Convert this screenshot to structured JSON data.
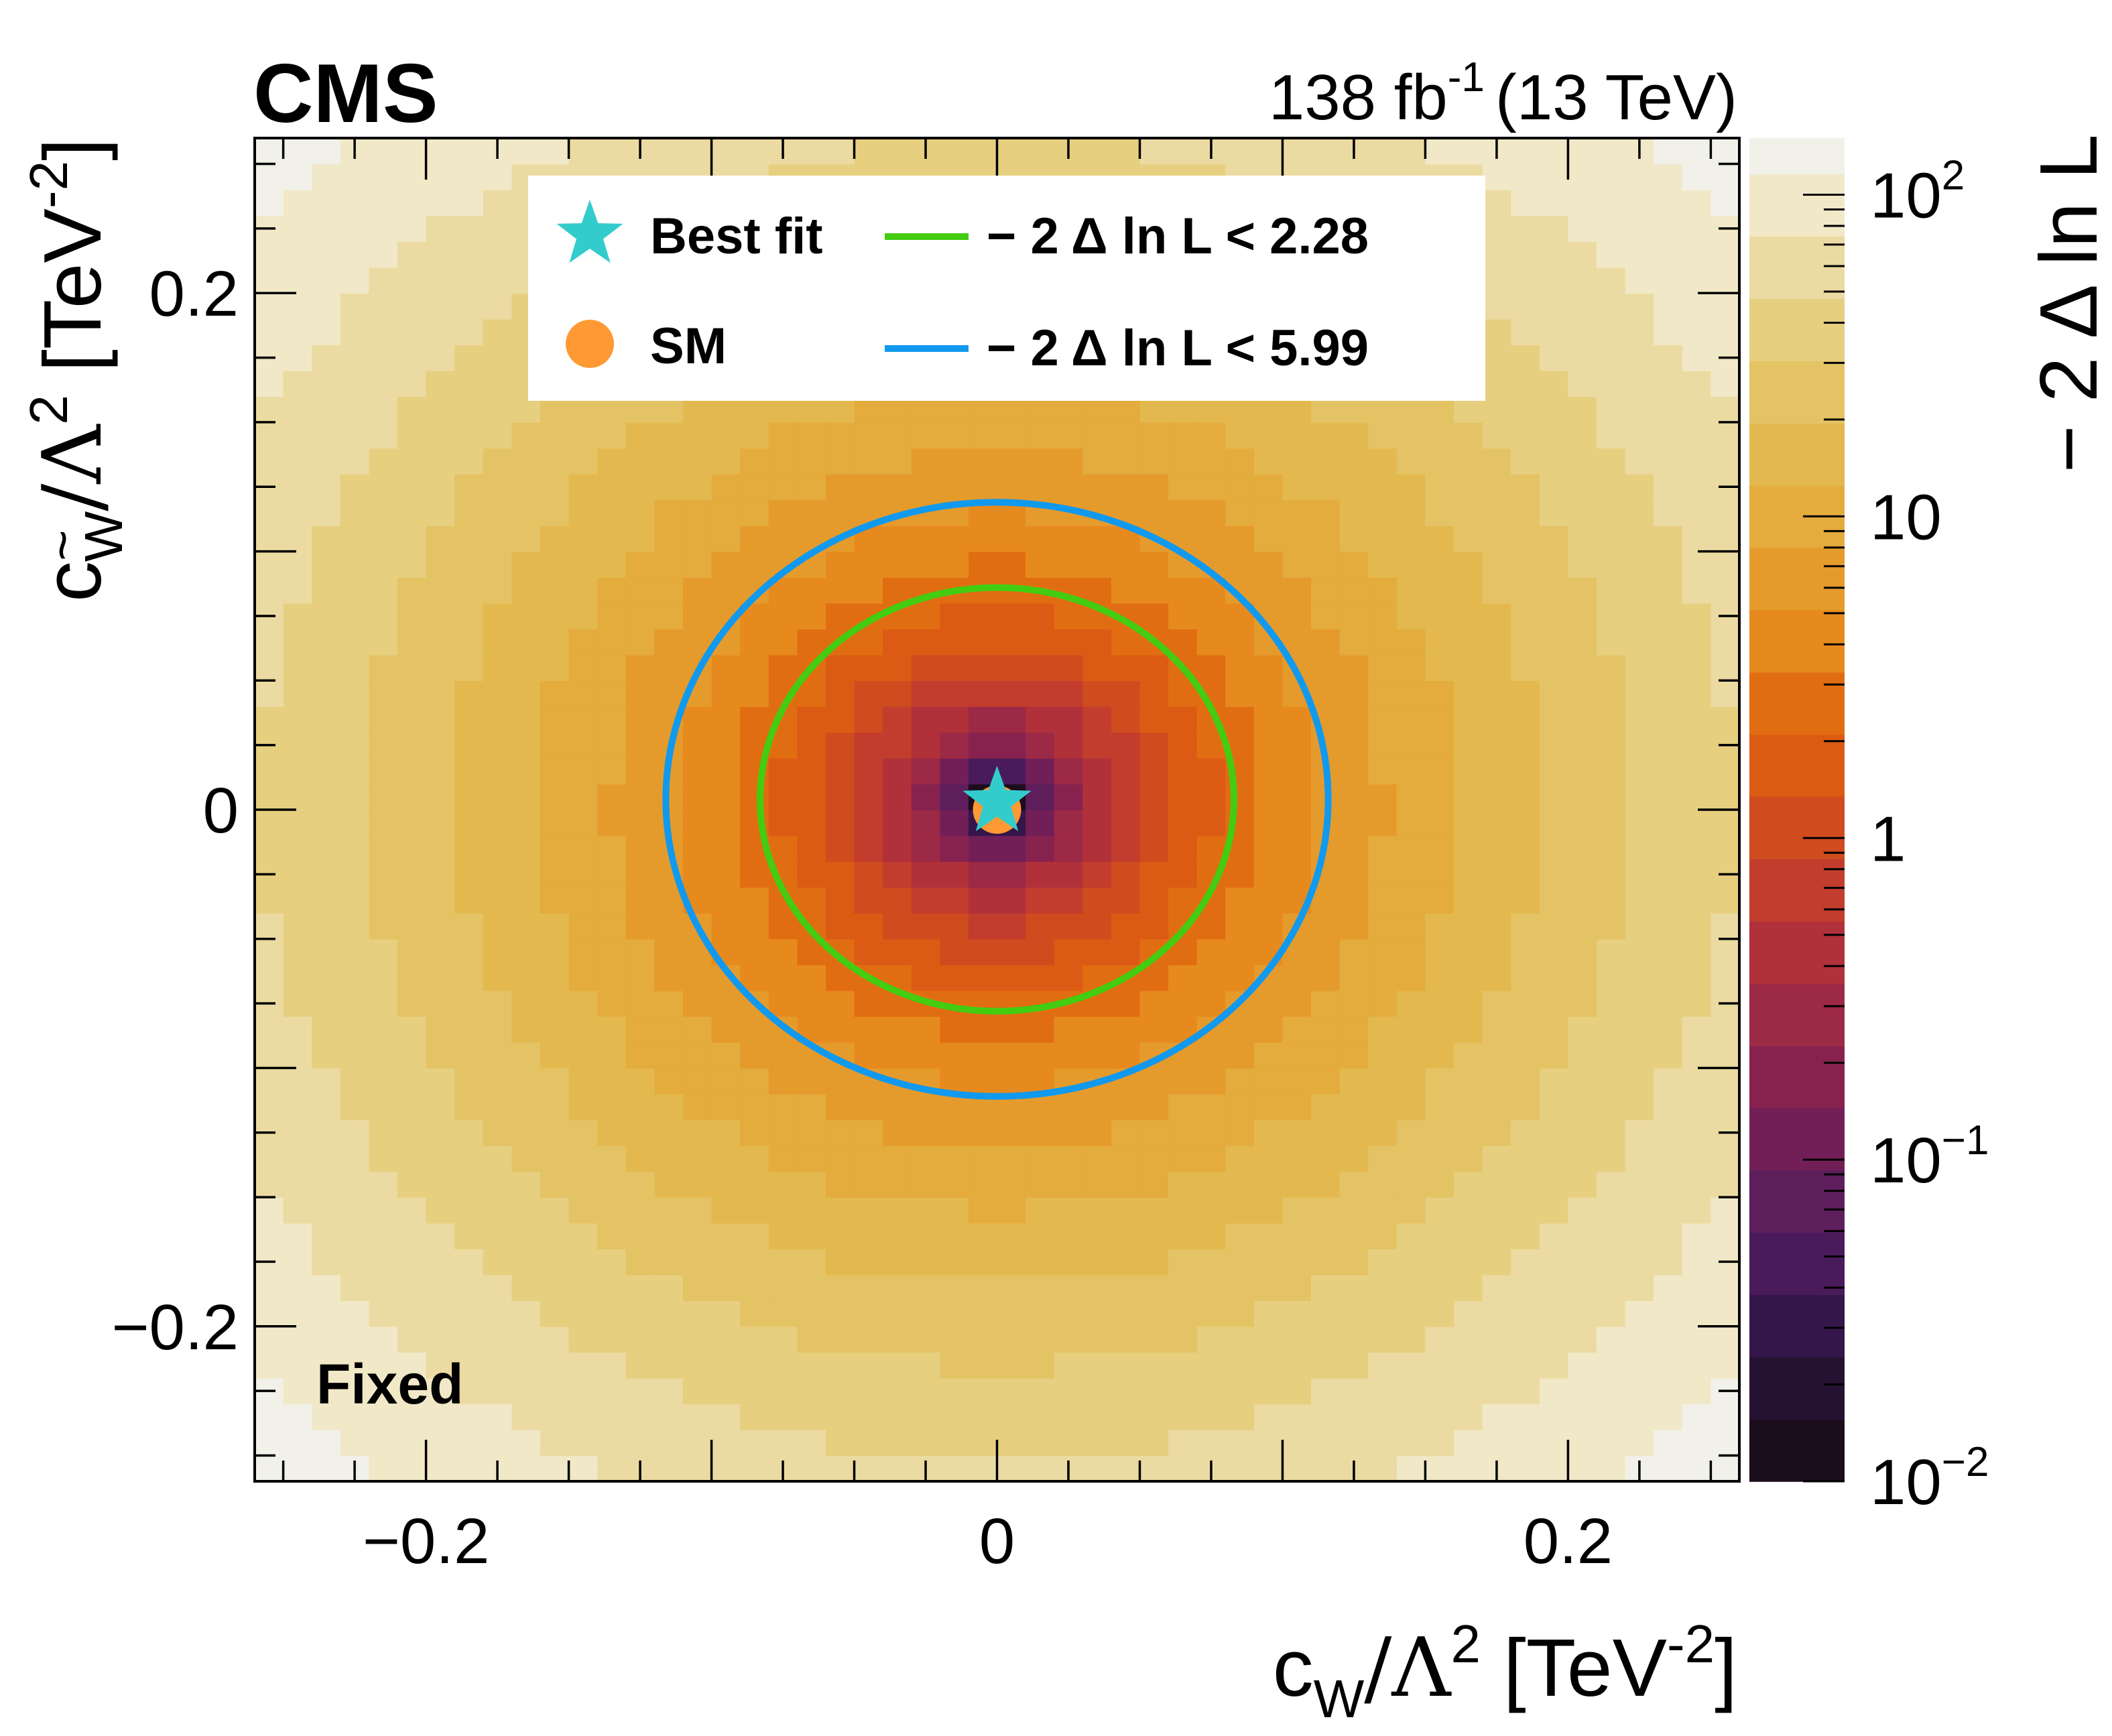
{
  "header": {
    "experiment": "CMS",
    "lumi_value": "138 fb",
    "lumi_exp": "-1",
    "energy": "(13 TeV)"
  },
  "labels": {
    "category": "Fixed"
  },
  "chart_data": {
    "type": "heatmap",
    "title": "",
    "xlabel": {
      "base": "c",
      "sub": "W",
      "rest": "/Λ",
      "pow": "2",
      "unit": " [TeV",
      "unit_pow": "-2",
      "close": "]"
    },
    "ylabel": {
      "base": "c",
      "sub": "W",
      "sub_accent": "~",
      "rest": "/Λ",
      "pow": "2",
      "unit": " [TeV",
      "unit_pow": "-2",
      "close": "]"
    },
    "zlabel": "− 2  Δ ln L",
    "xlim": [
      -0.26,
      0.26
    ],
    "ylim": [
      -0.26,
      0.26
    ],
    "zlim": [
      0.01,
      150
    ],
    "zscale": "log",
    "x_ticks": [
      {
        "value": -0.2,
        "label": "−0.2"
      },
      {
        "value": 0,
        "label": "0"
      },
      {
        "value": 0.2,
        "label": "0.2"
      }
    ],
    "y_ticks": [
      {
        "value": 0.2,
        "label": "0.2"
      },
      {
        "value": 0,
        "label": "0"
      },
      {
        "value": -0.2,
        "label": "−0.2"
      }
    ],
    "z_ticks": [
      {
        "value": 100,
        "base": "10",
        "exp": "2"
      },
      {
        "value": 10,
        "base": "10",
        "exp": ""
      },
      {
        "value": 1,
        "base": "1",
        "exp": ""
      },
      {
        "value": 0.1,
        "base": "10",
        "exp": "−1"
      },
      {
        "value": 0.01,
        "base": "10",
        "exp": "−2"
      }
    ],
    "best_fit": {
      "x": 0.0,
      "y": 0.003
    },
    "sm": {
      "x": 0.0,
      "y": 0.0
    },
    "contours": [
      {
        "name": "68",
        "level": 2.28,
        "color": "#44cc11",
        "cx": 0.0,
        "cy": 0.004,
        "rx": 0.083,
        "ry": 0.082
      },
      {
        "name": "95",
        "level": 5.99,
        "color": "#1199ee",
        "cx": 0.0,
        "cy": 0.004,
        "rx": 0.116,
        "ry": 0.115
      }
    ],
    "legend": {
      "placement": "top-center",
      "entries": [
        {
          "name": "best_fit",
          "label": "Best fit",
          "marker": "star",
          "color": "#33cccc"
        },
        {
          "name": "contour_68",
          "label": "− 2  Δ ln L < 2.28",
          "marker": "line",
          "color": "#44cc11"
        },
        {
          "name": "sm",
          "label": "SM",
          "marker": "circle",
          "color": "#ff9933"
        },
        {
          "name": "contour_95",
          "label": "− 2  Δ ln L < 5.99",
          "marker": "line",
          "color": "#1199ee"
        }
      ]
    },
    "palette": [
      "#1c0d1d",
      "#251233",
      "#35164a",
      "#4a1b5a",
      "#5e1e5c",
      "#721f58",
      "#87224f",
      "#9c2945",
      "#b0313a",
      "#c23d2d",
      "#d04b1e",
      "#dc5b14",
      "#e16d12",
      "#e68a1e",
      "#e59b2c",
      "#e4ab3d",
      "#e3b94f",
      "#e4c365",
      "#e7cf80",
      "#ebdba2",
      "#f1e8c8",
      "#f1f1ea"
    ],
    "palette_bounds": [
      0.01,
      0.0156,
      0.0244,
      0.0381,
      0.0595,
      0.0929,
      0.145,
      0.226,
      0.353,
      0.552,
      0.862,
      1.35,
      2.1,
      3.28,
      5.13,
      8.0,
      12.5,
      19.5,
      30.5,
      47.6,
      74.4,
      116,
      150
    ]
  }
}
